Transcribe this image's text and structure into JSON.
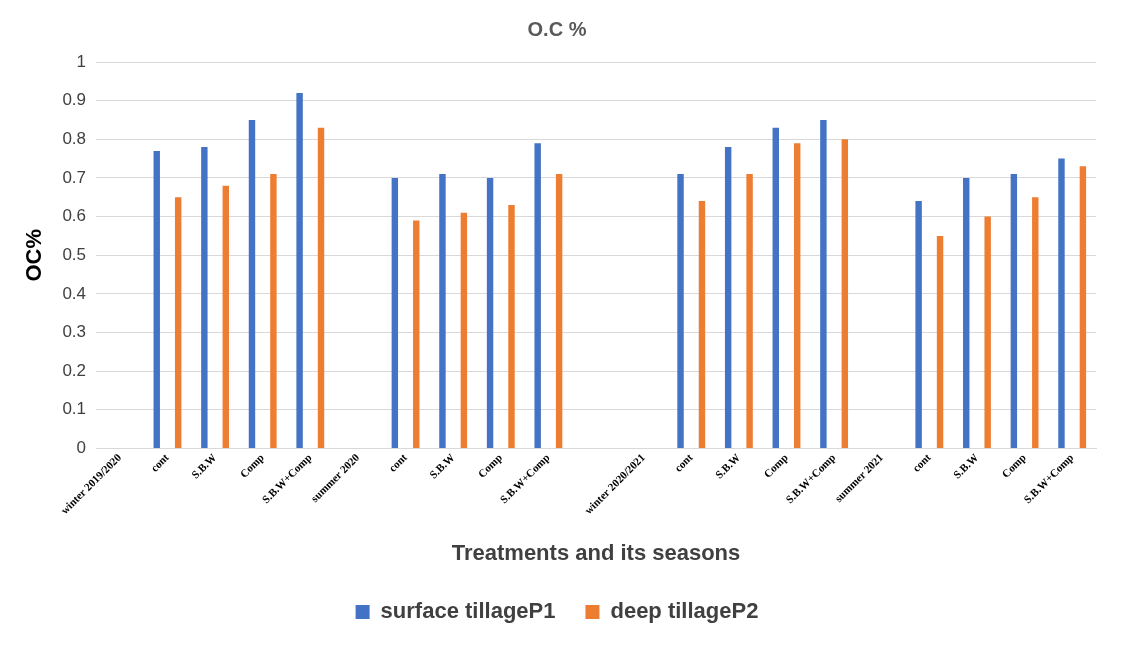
{
  "chart_data": {
    "type": "bar",
    "title": "O.C %",
    "xlabel": "Treatments and its seasons",
    "ylabel": "OC%",
    "categories": [
      "winter 2019/2020",
      "cont",
      "S.B.W",
      "Comp",
      "S.B.W+Comp",
      "summer 2020",
      "cont",
      "S.B.W",
      "Comp",
      "S.B.W+Comp",
      null,
      "winter 2020/2021",
      "cont",
      "S.B.W",
      "Comp",
      "S.B.W+Comp",
      "summer 2021",
      "cont",
      "S.B.W",
      "Comp",
      "S.B.W+Comp"
    ],
    "series": [
      {
        "name": "surface tillageP1",
        "color": "#4472c4",
        "values": [
          null,
          0.77,
          0.78,
          0.85,
          0.92,
          null,
          0.7,
          0.71,
          0.7,
          0.79,
          null,
          null,
          0.71,
          0.78,
          0.83,
          0.85,
          null,
          0.64,
          0.7,
          0.71,
          0.75
        ]
      },
      {
        "name": "deep tillageP2",
        "color": "#ed7d31",
        "values": [
          null,
          0.65,
          0.68,
          0.71,
          0.83,
          null,
          0.59,
          0.61,
          0.63,
          0.71,
          null,
          null,
          0.64,
          0.71,
          0.79,
          0.8,
          null,
          0.55,
          0.6,
          0.65,
          0.73
        ]
      }
    ],
    "ylim": [
      0,
      1
    ],
    "yticks": [
      0,
      0.1,
      0.2,
      0.3,
      0.4,
      0.5,
      0.6,
      0.7,
      0.8,
      0.9,
      1
    ],
    "grid": "y",
    "legend": "bottom"
  }
}
